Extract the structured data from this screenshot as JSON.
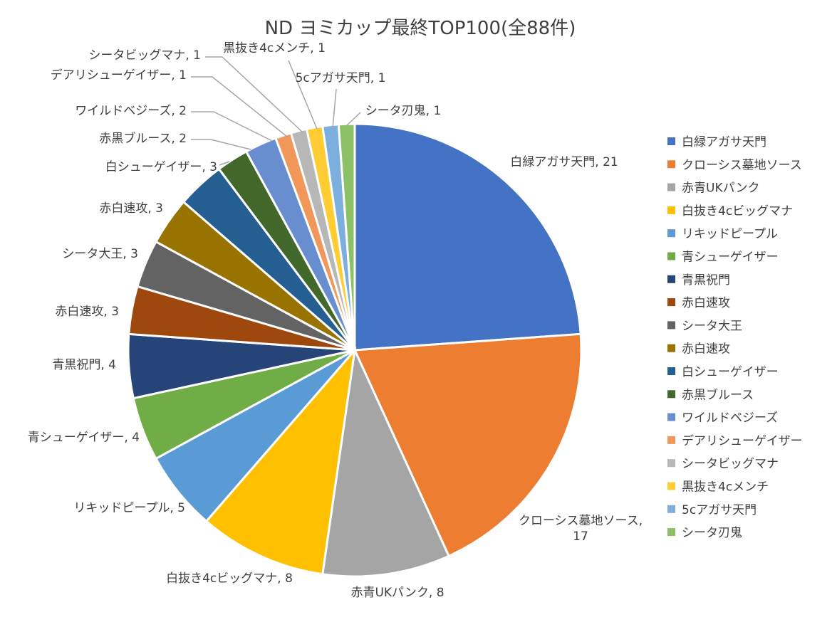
{
  "chart_data": {
    "type": "pie",
    "title": "ND ヨミカップ最終TOP100(全88件)",
    "categories": [
      "白緑アガサ天門",
      "クローシス墓地ソース",
      "赤青UKパンク",
      "白抜き4cビッグマナ",
      "リキッドピープル",
      "青シューゲイザー",
      "青黒祝門",
      "赤白速攻",
      "シータ大王",
      "赤白速攻",
      "白シューゲイザー",
      "赤黒ブルース",
      "ワイルドベジーズ",
      "デアリシューゲイザー",
      "シータビッグマナ",
      "黒抜き4cメンチ",
      "5cアガサ天門",
      "シータ刃鬼"
    ],
    "values": [
      21,
      17,
      8,
      8,
      5,
      4,
      4,
      3,
      3,
      3,
      3,
      2,
      2,
      1,
      1,
      1,
      1,
      1
    ],
    "colors": [
      "#4472C4",
      "#ED7D31",
      "#A5A5A5",
      "#FFC000",
      "#5B9BD5",
      "#70AD47",
      "#264478",
      "#9E480E",
      "#636363",
      "#997300",
      "#255E91",
      "#43682B",
      "#698ED0",
      "#F1975A",
      "#B7B7B7",
      "#FFCD33",
      "#7CAFDD",
      "#8CC168"
    ],
    "data_labels": [
      [
        "白緑アガサ天門, 21"
      ],
      [
        "クローシス墓地ソース,",
        "17"
      ],
      [
        "赤青UKパンク, 8"
      ],
      [
        "白抜き4cビッグマナ, 8"
      ],
      [
        "リキッドピープル, 5"
      ],
      [
        "青シューゲイザー, 4"
      ],
      [
        "青黒祝門, 4"
      ],
      [
        "赤白速攻, 3"
      ],
      [
        "シータ大王, 3"
      ],
      [
        "赤白速攻, 3"
      ],
      [
        "白シューゲイザー, 3"
      ],
      [
        "赤黒ブルース, 2"
      ],
      [
        "ワイルドベジーズ, 2"
      ],
      [
        "デアリシューゲイザー, 1"
      ],
      [
        "シータビッグマナ, 1"
      ],
      [
        "黒抜き4cメンチ, 1"
      ],
      [
        "5cアガサ天門, 1"
      ],
      [
        "シータ刃鬼, 1"
      ]
    ],
    "legend_position": "right"
  }
}
